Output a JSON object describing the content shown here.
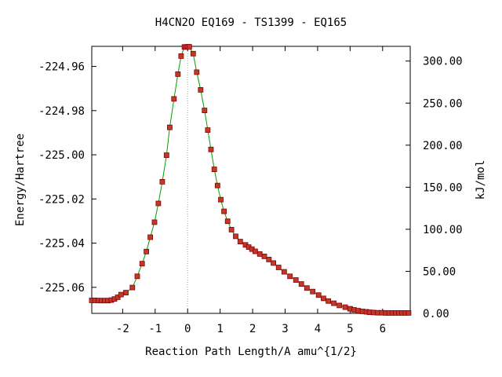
{
  "chart_data": {
    "type": "line",
    "title": "H4CN2O   EQ169 - TS1399 - EQ165",
    "xlabel": "Reaction Path Length/A amu^{1/2}",
    "ylabel": "Energy/Hartree",
    "y2label": "kJ/mol",
    "xlim": [
      -2.95,
      6.85
    ],
    "ylim": [
      -225.0718,
      -224.9509
    ],
    "y2lim": [
      0.0,
      317.5
    ],
    "x_ticks": [
      -2,
      -1,
      0,
      1,
      2,
      3,
      4,
      5,
      6
    ],
    "y_ticks": [
      -224.96,
      -224.98,
      -225.0,
      -225.02,
      -225.04,
      -225.06
    ],
    "y2_ticks": [
      0.0,
      50.0,
      100.0,
      150.0,
      200.0,
      250.0,
      300.0
    ],
    "x_tick_labels": [
      "-2",
      "-1",
      "0",
      "1",
      "2",
      "3",
      "4",
      "5",
      "6"
    ],
    "y_tick_labels": [
      "-224.96",
      "-224.98",
      "-225.00",
      "-225.02",
      "-225.04",
      "-225.06"
    ],
    "y2_tick_labels": [
      "0.00",
      "50.00",
      "100.00",
      "150.00",
      "200.00",
      "250.00",
      "300.00"
    ],
    "ts_marker_x": 0.0,
    "colors": {
      "curve": "#00a000",
      "points": "#c0392b",
      "point_edge": "#8b0000",
      "ts_line": "#aaaaaa"
    },
    "series": [
      {
        "x": [
          -2.95,
          -2.85,
          -2.75,
          -2.65,
          -2.55,
          -2.45,
          -2.35,
          -2.25,
          -2.15,
          -2.05,
          -1.9,
          -1.7,
          -1.55,
          -1.4,
          -1.27,
          -1.15,
          -1.02,
          -0.9,
          -0.78,
          -0.65,
          -0.55,
          -0.42,
          -0.3,
          -0.2,
          -0.1,
          -0.05,
          0.0,
          0.05,
          0.17,
          0.28,
          0.4,
          0.52,
          0.62,
          0.72,
          0.82,
          0.92,
          1.02,
          1.12,
          1.23,
          1.35,
          1.48,
          1.62,
          1.78,
          1.88,
          1.98,
          2.08,
          2.22,
          2.36,
          2.5,
          2.64,
          2.8,
          2.97,
          3.15,
          3.33,
          3.5,
          3.67,
          3.85,
          4.03,
          4.18,
          4.33,
          4.5,
          4.67,
          4.85,
          5.0,
          5.12,
          5.25,
          5.38,
          5.5,
          5.6,
          5.72,
          5.85,
          5.98,
          6.1,
          6.2,
          6.3,
          6.4,
          6.5,
          6.6,
          6.7,
          6.8
        ],
        "y": [
          -225.0659,
          -225.0659,
          -225.066,
          -225.066,
          -225.066,
          -225.066,
          -225.0658,
          -225.0653,
          -225.0645,
          -225.0633,
          -225.0624,
          -225.0601,
          -225.055,
          -225.0493,
          -225.0438,
          -225.0373,
          -225.0305,
          -225.022,
          -225.0122,
          -225.0002,
          -224.9876,
          -224.9747,
          -224.9635,
          -224.9553,
          -224.9512,
          -224.9512,
          -224.9511,
          -224.9511,
          -224.9542,
          -224.9626,
          -224.9706,
          -224.9799,
          -224.9888,
          -224.9976,
          -225.0066,
          -225.0139,
          -225.0203,
          -225.0256,
          -225.0301,
          -225.0339,
          -225.0369,
          -225.0393,
          -225.0408,
          -225.0418,
          -225.0427,
          -225.0437,
          -225.0449,
          -225.046,
          -225.0474,
          -225.049,
          -225.051,
          -225.053,
          -225.055,
          -225.0567,
          -225.0585,
          -225.0603,
          -225.0619,
          -225.0635,
          -225.065,
          -225.0662,
          -225.0672,
          -225.0682,
          -225.069,
          -225.0697,
          -225.0702,
          -225.0706,
          -225.0709,
          -225.0711,
          -225.0713,
          -225.0714,
          -225.0715,
          -225.0715,
          -225.0716,
          -225.0716,
          -225.0716,
          -225.0716,
          -225.0716,
          -225.0716,
          -225.0716,
          -225.0716
        ]
      }
    ]
  }
}
